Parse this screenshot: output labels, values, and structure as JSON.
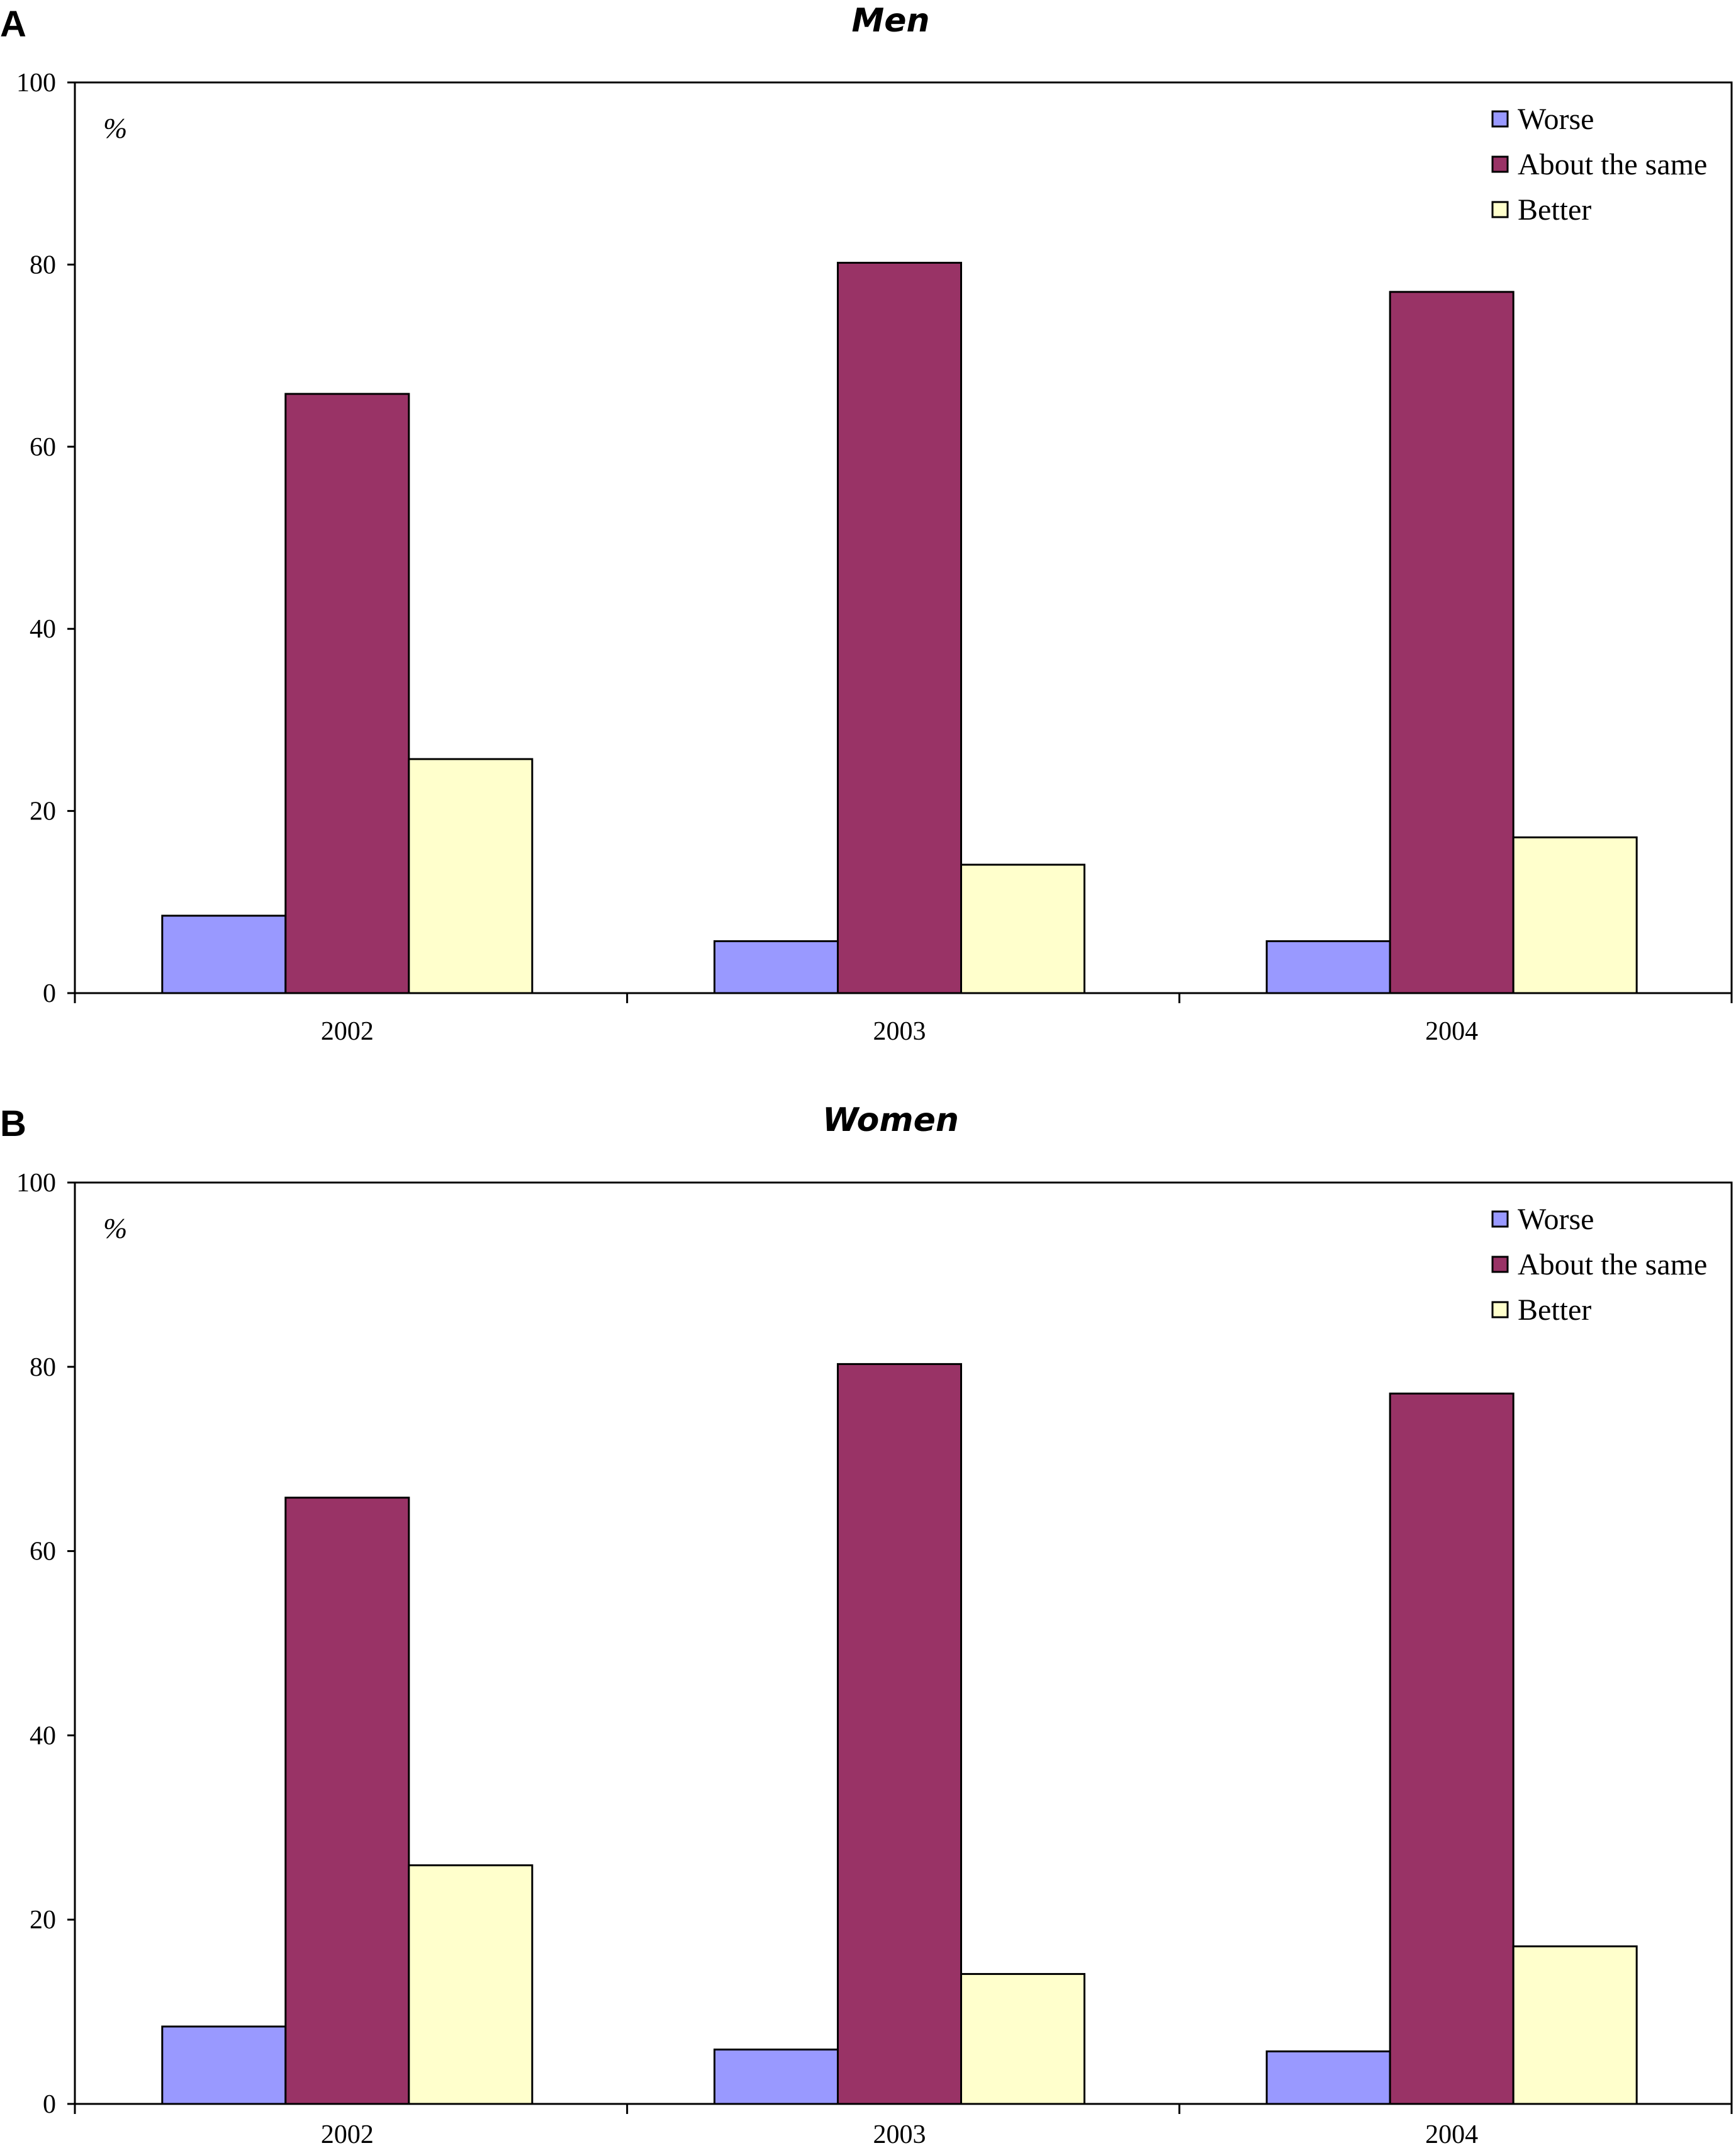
{
  "chart_data": [
    {
      "type": "bar",
      "panel": "A",
      "title": "Men",
      "unit": "%",
      "categories": [
        "2002",
        "2003",
        "2004"
      ],
      "series": [
        {
          "name": "Worse",
          "color": "#9999ff",
          "values": [
            8.5,
            5.7,
            5.7
          ]
        },
        {
          "name": "About the same",
          "color": "#993366",
          "values": [
            65.8,
            80.2,
            77.0
          ]
        },
        {
          "name": "Better",
          "color": "#ffffcc",
          "values": [
            25.7,
            14.1,
            17.1
          ]
        }
      ],
      "ylim": [
        0,
        100
      ],
      "yticks": [
        "0",
        "20",
        "40",
        "60",
        "80",
        "100"
      ],
      "legend": "top-right",
      "grid": false
    },
    {
      "type": "bar",
      "panel": "B",
      "title": "Women",
      "unit": "%",
      "categories": [
        "2002",
        "2003",
        "2004"
      ],
      "series": [
        {
          "name": "Worse",
          "color": "#9999ff",
          "values": [
            8.4,
            5.9,
            5.7
          ]
        },
        {
          "name": "About the same",
          "color": "#993366",
          "values": [
            65.8,
            80.3,
            77.1
          ]
        },
        {
          "name": "Better",
          "color": "#ffffcc",
          "values": [
            25.9,
            14.1,
            17.1
          ]
        }
      ],
      "ylim": [
        0,
        100
      ],
      "yticks": [
        "0",
        "20",
        "40",
        "60",
        "80",
        "100"
      ],
      "legend": "top-right",
      "grid": false
    }
  ]
}
